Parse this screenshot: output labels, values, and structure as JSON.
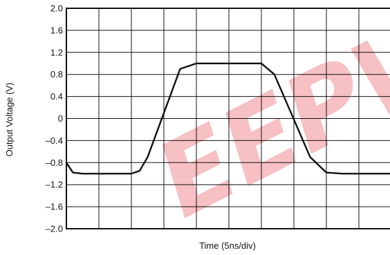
{
  "chart_data": {
    "type": "line",
    "title": "",
    "xlabel": "Time (5ns/div)",
    "ylabel": "Output Voltage (V)",
    "x_divisions": 10,
    "xlim": [
      0,
      10
    ],
    "ylim": [
      -2.0,
      2.0
    ],
    "y_ticks": [
      "2.0",
      "1.6",
      "1.2",
      "0.8",
      "0.4",
      "0",
      "–0.4",
      "–0.8",
      "–1.2",
      "–1.6",
      "–2.0"
    ],
    "grid": true,
    "series": [
      {
        "x": [
          0.0,
          0.2,
          0.5,
          1.0,
          2.0,
          2.25,
          2.5,
          3.5,
          4.0,
          5.0,
          6.0,
          6.4,
          7.5,
          8.0,
          8.5,
          9.5,
          10.0
        ],
        "y": [
          -0.8,
          -0.98,
          -1.0,
          -1.0,
          -1.0,
          -0.95,
          -0.7,
          0.9,
          1.0,
          1.0,
          1.0,
          0.8,
          -0.7,
          -0.98,
          -1.0,
          -1.0,
          -1.0
        ]
      }
    ],
    "watermark": "EEPW",
    "colors": {
      "line": "#111111",
      "grid": "#111111",
      "watermark": "#e41e26"
    }
  }
}
